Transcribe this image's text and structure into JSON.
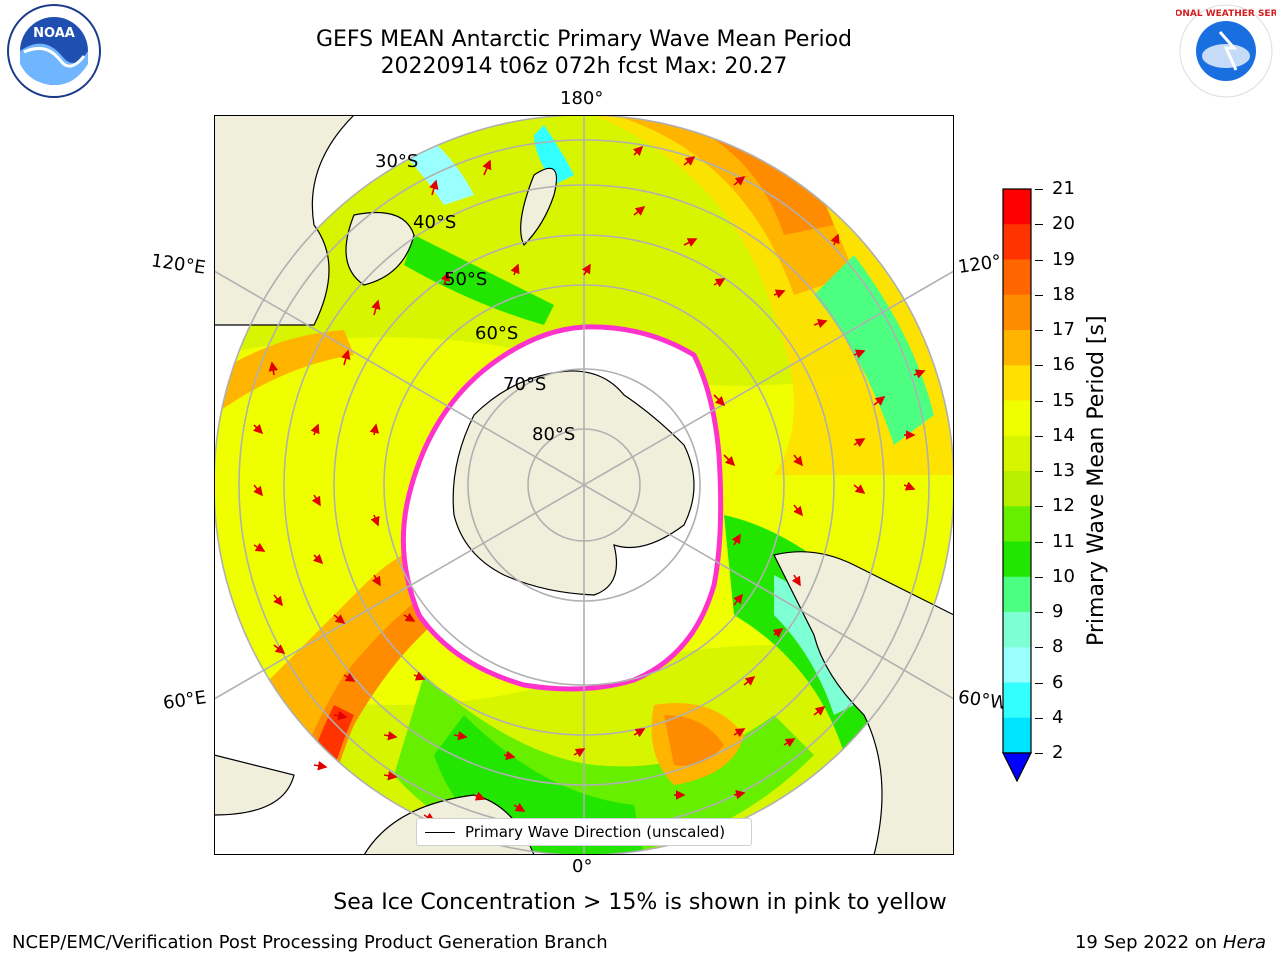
{
  "title_line1": "GEFS MEAN Antarctic Primary Wave Mean Period",
  "title_line2": "20220914 t06z 072h fcst   Max: 20.27",
  "map": {
    "lon_labels": [
      "180°",
      "120°E",
      "120°",
      "60°E",
      "60°W",
      "0°"
    ],
    "lat_labels": [
      "30°S",
      "40°S",
      "50°S",
      "60°S",
      "70°S",
      "80°S"
    ],
    "ocean_color_scheme": "wave-period-colormap",
    "land_color": "#efefdc",
    "ice_edge_color": "#ff33cc"
  },
  "legend": {
    "label": "Primary Wave Direction (unscaled)"
  },
  "colorbar": {
    "label": "Primary Wave Mean Period [s]",
    "ticks": [
      "21",
      "20",
      "19",
      "18",
      "17",
      "16",
      "15",
      "14",
      "13",
      "12",
      "11",
      "10",
      "9",
      "8",
      "6",
      "4",
      "2"
    ],
    "colors": [
      "#ff0000",
      "#ff3300",
      "#ff6600",
      "#ff8c00",
      "#ffb400",
      "#ffe000",
      "#f0ff00",
      "#d8f500",
      "#b8f000",
      "#66f000",
      "#22e600",
      "#4dff80",
      "#7fffd4",
      "#99ffff",
      "#33ffff",
      "#00e5ff",
      "#0088ff",
      "#0000ff"
    ]
  },
  "note": "Sea Ice Concentration > 15% is shown in pink to yellow",
  "credit": "NCEP/EMC/Verification Post Processing Product Generation Branch",
  "stamp_date": "19 Sep 2022 on",
  "stamp_host": "Hera",
  "logos": {
    "noaa": "NOAA",
    "nws": "NATIONAL WEATHER SERVICE"
  }
}
